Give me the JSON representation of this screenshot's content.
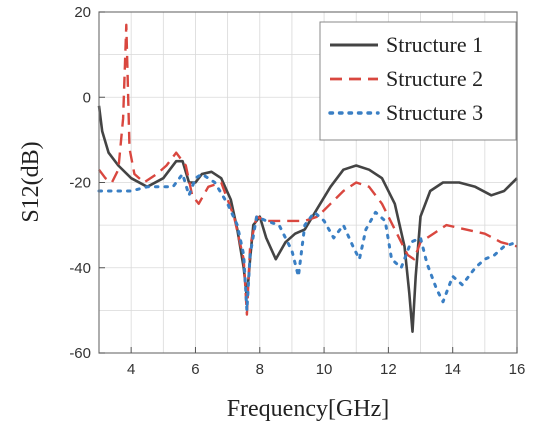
{
  "chart_data": {
    "type": "line",
    "title": "",
    "xlabel": "Frequency[GHz]",
    "ylabel": "S12(dB)",
    "xlim": [
      3,
      16
    ],
    "ylim": [
      -60,
      20
    ],
    "xticks": [
      4,
      6,
      8,
      10,
      12,
      14,
      16
    ],
    "yticks": [
      -60,
      -40,
      -20,
      0,
      20
    ],
    "grid": true,
    "legend_position": "top-right",
    "series": [
      {
        "name": "Structure 1",
        "color": "#444444",
        "style": "solid",
        "x": [
          3.0,
          3.1,
          3.3,
          3.6,
          4.0,
          4.5,
          5.0,
          5.4,
          5.6,
          5.8,
          6.0,
          6.2,
          6.5,
          6.8,
          7.1,
          7.3,
          7.5,
          7.6,
          7.7,
          7.8,
          8.0,
          8.2,
          8.5,
          8.8,
          9.1,
          9.4,
          9.8,
          10.2,
          10.6,
          11.0,
          11.4,
          11.8,
          12.2,
          12.5,
          12.65,
          12.75,
          12.85,
          13.0,
          13.3,
          13.7,
          14.2,
          14.7,
          15.2,
          15.6,
          16.0
        ],
        "y": [
          -2,
          -8,
          -13,
          -16,
          -19,
          -21,
          -19,
          -15,
          -15,
          -20,
          -20,
          -18,
          -17.5,
          -19,
          -24,
          -31,
          -40,
          -47,
          -38,
          -30,
          -28,
          -33,
          -38,
          -34,
          -32,
          -31,
          -26,
          -21,
          -17,
          -16,
          -17,
          -19,
          -25,
          -35,
          -46,
          -55,
          -42,
          -28,
          -22,
          -20,
          -20,
          -21,
          -23,
          -22,
          -19
        ]
      },
      {
        "name": "Structure 2",
        "color": "#d9473f",
        "style": "dashed",
        "x": [
          3.0,
          3.2,
          3.4,
          3.6,
          3.75,
          3.85,
          3.95,
          4.1,
          4.4,
          4.8,
          5.1,
          5.4,
          5.7,
          5.9,
          6.1,
          6.4,
          6.8,
          7.2,
          7.5,
          7.6,
          7.7,
          7.9,
          8.2,
          8.6,
          9.0,
          9.4,
          9.8,
          10.2,
          10.6,
          11.0,
          11.4,
          11.8,
          12.2,
          12.6,
          12.8,
          13.0,
          13.4,
          13.8,
          14.4,
          15.0,
          15.5,
          16.0
        ],
        "y": [
          -17,
          -19,
          -20,
          -17,
          -5,
          17,
          -12,
          -18,
          -20,
          -18,
          -16,
          -13,
          -16,
          -23,
          -25,
          -21,
          -20,
          -28,
          -38,
          -51,
          -35,
          -28,
          -29,
          -29,
          -29,
          -29,
          -28,
          -25,
          -22,
          -20,
          -21,
          -25,
          -31,
          -37,
          -38,
          -34,
          -32,
          -30,
          -31,
          -32,
          -34,
          -35
        ]
      },
      {
        "name": "Structure 3",
        "color": "#3a7fc4",
        "style": "dotted",
        "x": [
          3.0,
          3.5,
          4.0,
          4.5,
          5.0,
          5.3,
          5.6,
          5.8,
          6.0,
          6.2,
          6.6,
          7.0,
          7.3,
          7.5,
          7.6,
          7.7,
          7.9,
          8.2,
          8.6,
          9.0,
          9.2,
          9.4,
          9.7,
          10.0,
          10.3,
          10.6,
          10.9,
          11.1,
          11.3,
          11.6,
          11.9,
          12.1,
          12.4,
          12.7,
          13.0,
          13.2,
          13.5,
          13.7,
          14.0,
          14.3,
          14.7,
          15.0,
          15.3,
          15.6,
          16.0
        ],
        "y": [
          -22,
          -22,
          -22,
          -21,
          -21,
          -21,
          -18,
          -23,
          -19,
          -18,
          -20,
          -25,
          -30,
          -37,
          -50,
          -37,
          -28,
          -29,
          -30,
          -36,
          -42,
          -30,
          -27,
          -29,
          -33,
          -30,
          -35,
          -38,
          -31,
          -27,
          -29,
          -38,
          -40,
          -34,
          -33,
          -39,
          -45,
          -48,
          -42,
          -44,
          -40,
          -38,
          -37,
          -35,
          -34
        ]
      }
    ]
  }
}
